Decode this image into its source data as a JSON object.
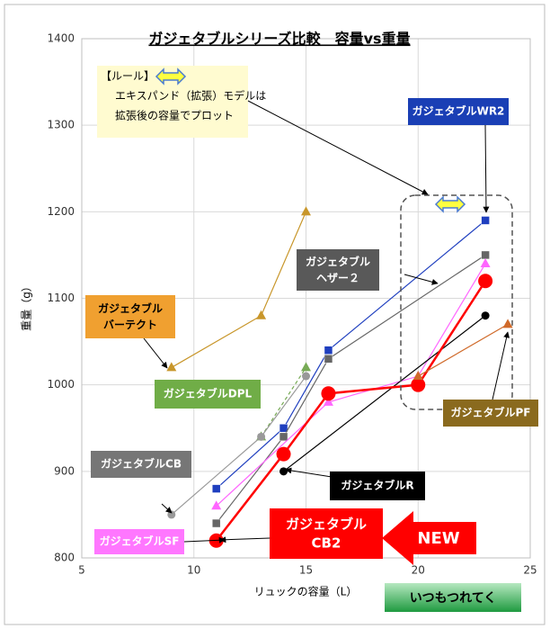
{
  "chart_data": {
    "type": "line",
    "title": "ガジェタブルシリーズ比較　容量vs重量",
    "x_label": "リュックの容量（L）",
    "y_label": "重量（g）",
    "xlim": [
      5,
      25
    ],
    "xticks": [
      5,
      10,
      15,
      20,
      25
    ],
    "ylim": [
      800,
      1400
    ],
    "yticks": [
      800,
      900,
      1000,
      1100,
      1200,
      1300,
      1400
    ],
    "grid": true,
    "note": [
      "【ルール】",
      "エキスパンド（拡張）モデルは",
      "拡張後の容量でプロット"
    ],
    "badges": [
      "NEW",
      "いつもつれてく"
    ],
    "series": [
      {
        "name": "ガジェタブルWR2",
        "color": "#1f3fbf",
        "marker": "square",
        "x": [
          11,
          14,
          16,
          23
        ],
        "values": [
          880,
          950,
          1040,
          1190
        ]
      },
      {
        "name": "ガジェタブル\nヘザー２",
        "color": "#666666",
        "marker": "square",
        "x": [
          11,
          14,
          16,
          23
        ],
        "values": [
          840,
          940,
          1030,
          1150
        ]
      },
      {
        "name": "ガジェタブル\nバーテクト",
        "color": "#c8962a",
        "marker": "triangle",
        "x": [
          9,
          13,
          15
        ],
        "values": [
          1020,
          1080,
          1200
        ]
      },
      {
        "name": "ガジェタブルDPL",
        "color": "#77aa55",
        "marker": "triangle",
        "x": [
          13,
          15
        ],
        "values": [
          940,
          1020
        ]
      },
      {
        "name": "ガジェタブルCB",
        "color": "#999999",
        "marker": "circle",
        "x": [
          9,
          13,
          15
        ],
        "values": [
          850,
          940,
          1010
        ]
      },
      {
        "name": "ガジェタブルSF",
        "color": "#ff66ff",
        "marker": "triangle",
        "x": [
          11,
          16,
          20,
          23
        ],
        "values": [
          860,
          980,
          1010,
          1140
        ]
      },
      {
        "name": "ガジェタブルR",
        "color": "#000000",
        "marker": "circle",
        "x": [
          14,
          23
        ],
        "values": [
          900,
          1080
        ]
      },
      {
        "name": "ガジェタブル\nCB2",
        "color": "#ff0000",
        "marker": "bigcircle",
        "x": [
          11,
          14,
          16,
          20,
          23
        ],
        "values": [
          820,
          920,
          990,
          1000,
          1120
        ]
      },
      {
        "name": "ガジェタブルPF",
        "color": "#d06a2a",
        "marker": "triangle",
        "x": [
          20,
          24
        ],
        "values": [
          1010,
          1070
        ]
      }
    ]
  }
}
